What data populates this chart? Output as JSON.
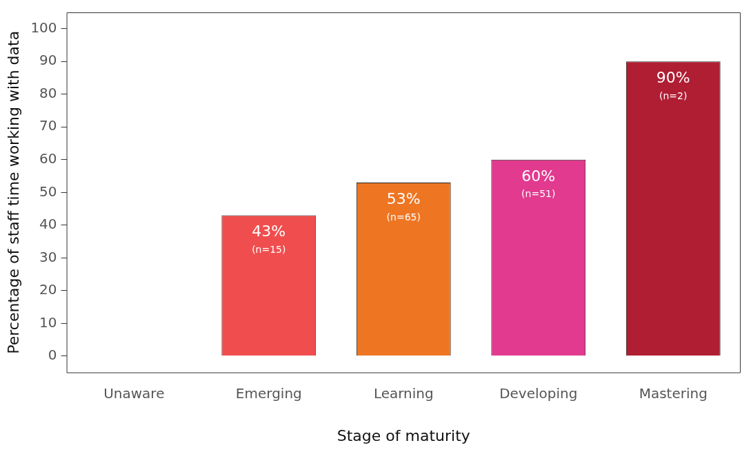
{
  "chart_data": {
    "type": "bar",
    "xlabel": "Stage of maturity",
    "ylabel": "Percentage of staff time working with data",
    "categories": [
      "Unaware",
      "Emerging",
      "Learning",
      "Developing",
      "Mastering"
    ],
    "values": [
      null,
      43,
      53,
      60,
      90
    ],
    "colors": [
      "#f04e4e",
      "#f04e4e",
      "#ee7623",
      "#e23a8f",
      "#b01e34"
    ],
    "value_labels": [
      null,
      "43%\n(n=15)",
      "53%\n(n=65)",
      "60%\n(n=51)",
      "90%\n(n=2)"
    ],
    "ylim": [
      -5,
      105
    ],
    "yticks": [
      0,
      10,
      20,
      30,
      40,
      50,
      60,
      70,
      80,
      90,
      100
    ],
    "grid": false,
    "legend": false
  }
}
